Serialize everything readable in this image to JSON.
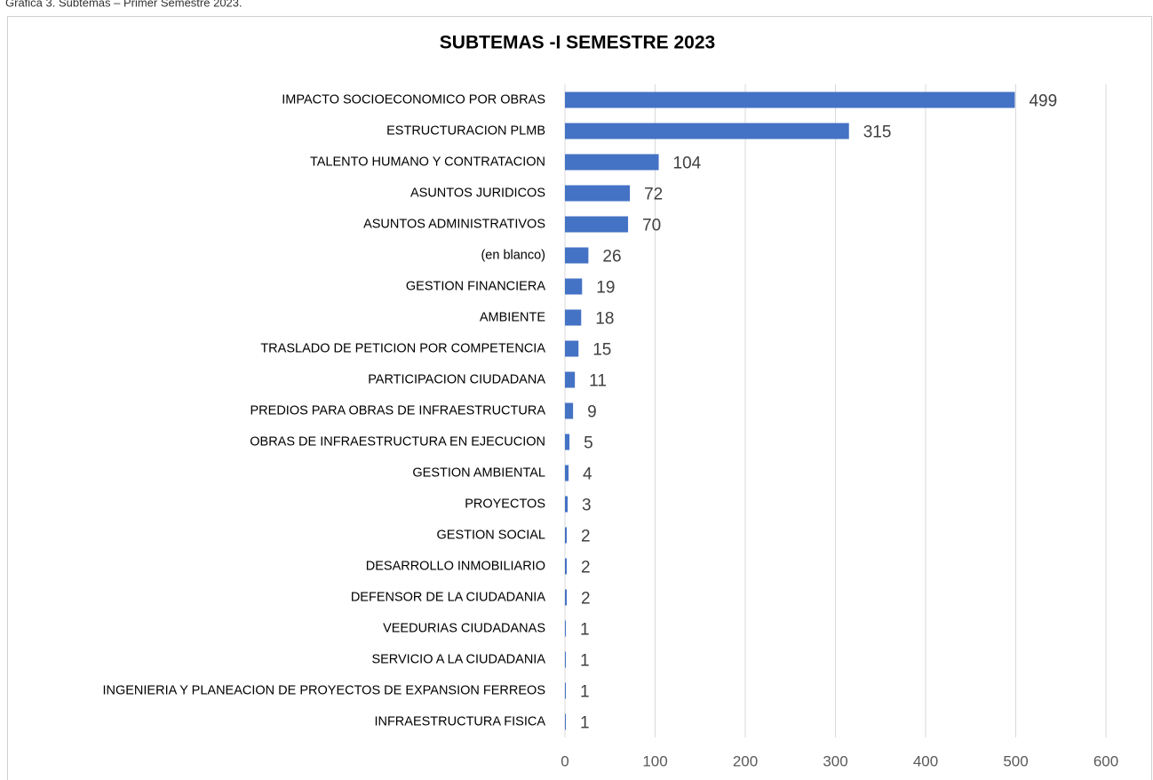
{
  "chart_data": {
    "type": "hbar",
    "caption": "Gráfica 3. Subtemas – Primer Semestre 2023.",
    "title": "SUBTEMAS -I SEMESTRE 2023",
    "categories": [
      "IMPACTO SOCIOECONOMICO POR OBRAS",
      "ESTRUCTURACION PLMB",
      "TALENTO HUMANO Y CONTRATACION",
      "ASUNTOS JURIDICOS",
      "ASUNTOS ADMINISTRATIVOS",
      "(en blanco)",
      "GESTION FINANCIERA",
      "AMBIENTE",
      "TRASLADO DE PETICION POR COMPETENCIA",
      "PARTICIPACION CIUDADANA",
      "PREDIOS PARA OBRAS DE INFRAESTRUCTURA",
      "OBRAS DE INFRAESTRUCTURA EN EJECUCION",
      "GESTION AMBIENTAL",
      "PROYECTOS",
      "GESTION SOCIAL",
      "DESARROLLO INMOBILIARIO",
      "DEFENSOR DE LA CIUDADANIA",
      "VEEDURIAS CIUDADANAS",
      "SERVICIO A LA CIUDADANIA",
      "INGENIERIA Y PLANEACION DE PROYECTOS DE EXPANSION FERREOS",
      "INFRAESTRUCTURA FISICA"
    ],
    "values": [
      499,
      315,
      104,
      72,
      70,
      26,
      19,
      18,
      15,
      11,
      9,
      5,
      4,
      3,
      2,
      2,
      2,
      1,
      1,
      1,
      1
    ],
    "color": "#4472c4",
    "xlim": [
      0,
      600
    ],
    "xticks": [
      0,
      100,
      200,
      300,
      400,
      500,
      600
    ],
    "grid": true
  }
}
